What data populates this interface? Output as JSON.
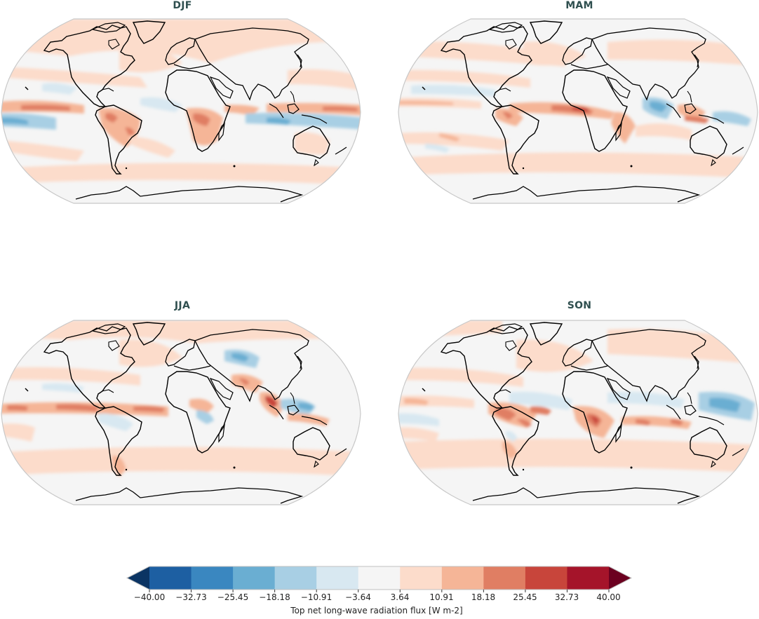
{
  "chart_data": {
    "type": "heatmap",
    "figure_kind": "seasonal global maps (Robinson projection), filled contours",
    "panels": [
      {
        "title": "DJF",
        "position": "top-left"
      },
      {
        "title": "MAM",
        "position": "top-right"
      },
      {
        "title": "JJA",
        "position": "bottom-left"
      },
      {
        "title": "SON",
        "position": "bottom-right"
      }
    ],
    "colorbar": {
      "label": "Top net long-wave radiation flux [W m-2]",
      "orientation": "horizontal",
      "extend": "both",
      "vmin": -40.0,
      "vmax": 40.0,
      "levels": [
        -40.0,
        -32.73,
        -25.45,
        -18.18,
        -10.91,
        -3.64,
        3.64,
        10.91,
        18.18,
        25.45,
        32.73,
        40.0
      ],
      "tick_labels": [
        "−40.00",
        "−32.73",
        "−25.45",
        "−18.18",
        "−10.91",
        "−3.64",
        "3.64",
        "10.91",
        "18.18",
        "25.45",
        "32.73",
        "40.00"
      ],
      "colors": [
        "#1d5fa2",
        "#3a87c0",
        "#6aaed2",
        "#a8cfe4",
        "#d8e8f1",
        "#f5f5f5",
        "#fcdccb",
        "#f5b597",
        "#e07e63",
        "#c8453b",
        "#a5142a"
      ],
      "under_color": "#0b3463",
      "over_color": "#6b0020",
      "colormap": "RdBu_r"
    },
    "title": "",
    "xlabel": "",
    "ylabel": ""
  }
}
